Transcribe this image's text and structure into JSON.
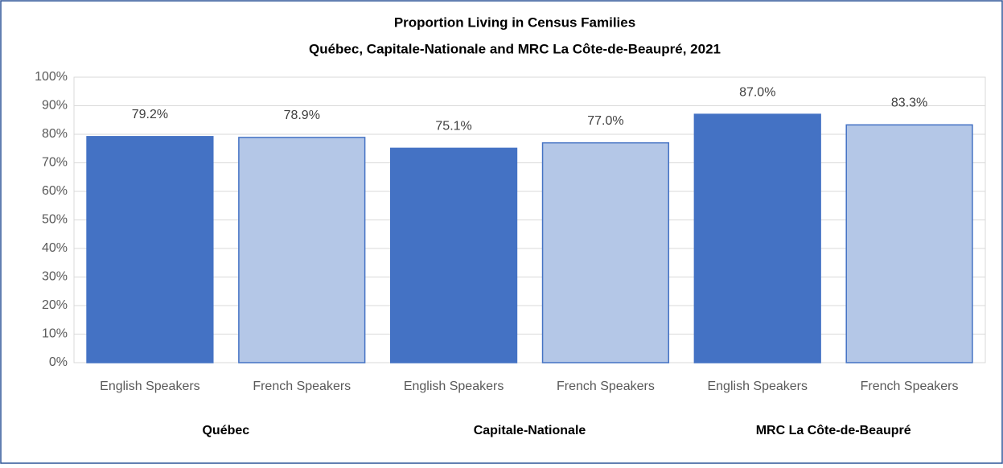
{
  "chart_data": {
    "type": "bar",
    "title": "Proportion Living in Census Families",
    "subtitle": "Québec, Capitale-Nationale and MRC La Côte-de-Beaupré, 2021",
    "categories": [
      "English Speakers",
      "French Speakers",
      "English Speakers",
      "French Speakers",
      "English Speakers",
      "French Speakers"
    ],
    "groups": [
      "Québec",
      "Capitale-Nationale",
      "MRC La Côte-de-Beaupré"
    ],
    "values": [
      79.2,
      78.9,
      75.1,
      77.0,
      87.0,
      83.3
    ],
    "value_labels": [
      "79.2%",
      "78.9%",
      "75.1%",
      "77.0%",
      "87.0%",
      "83.3%"
    ],
    "colors": [
      "#4472c4",
      "#b4c7e7",
      "#4472c4",
      "#b4c7e7",
      "#4472c4",
      "#b4c7e7"
    ],
    "ylim": [
      0,
      100
    ],
    "yticks": [
      {
        "value": 0,
        "label": "0%"
      },
      {
        "value": 10,
        "label": "10%"
      },
      {
        "value": 20,
        "label": "20%"
      },
      {
        "value": 30,
        "label": "30%"
      },
      {
        "value": 40,
        "label": "40%"
      },
      {
        "value": 50,
        "label": "50%"
      },
      {
        "value": 60,
        "label": "60%"
      },
      {
        "value": 70,
        "label": "70%"
      },
      {
        "value": 80,
        "label": "80%"
      },
      {
        "value": 90,
        "label": "90%"
      },
      {
        "value": 100,
        "label": "100%"
      }
    ],
    "grid": true
  }
}
